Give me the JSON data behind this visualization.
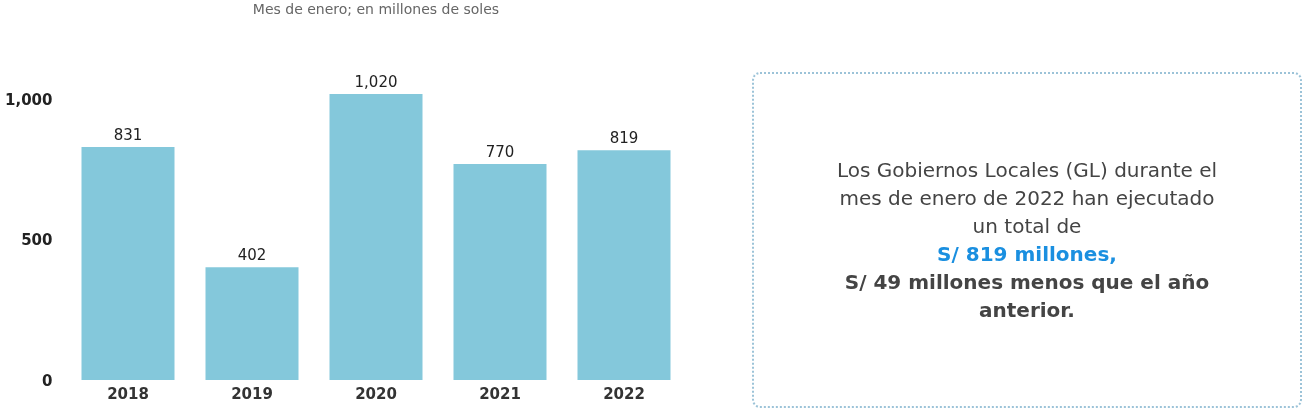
{
  "chart_data": [
    {
      "type": "bar",
      "subtitle": "Mes de enero; en millones de soles",
      "categories": [
        "2018",
        "2019",
        "2020",
        "2021",
        "2022"
      ],
      "values": [
        831,
        402,
        1020,
        770,
        819
      ],
      "color": "#84c8db",
      "ylim": [
        0,
        1020
      ],
      "yticks": [
        0,
        500,
        {
          "value": 1000,
          "label": "1,000"
        }
      ],
      "grid": false,
      "data_labels": true,
      "value_labels": [
        "831",
        "402",
        "1,020",
        "770",
        "819"
      ]
    },
    {
      "type": "other",
      "annotations": [
        "Los Gobiernos Locales (GL) durante el mes de enero de 2022 han ejecutado un total de",
        "S/ 819 millones,",
        "S/ 49 millones menos que el año anterior."
      ]
    }
  ]
}
